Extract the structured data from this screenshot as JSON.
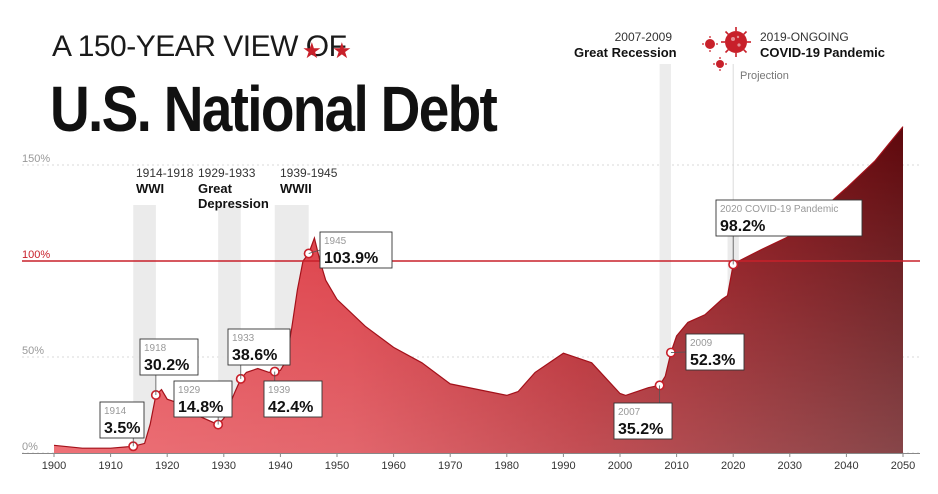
{
  "title": {
    "line1": "A 150-YEAR VIEW OF",
    "line2": "U.S. National Debt"
  },
  "events": [
    {
      "years": "1914-1918",
      "name": "WWI"
    },
    {
      "years": "1929-1933",
      "name": "Great Depression"
    },
    {
      "years": "1939-1945",
      "name": "WWII"
    },
    {
      "years": "2007-2009",
      "name": "Great Recession"
    },
    {
      "years": "2019-ONGOING",
      "name": "COVID-19 Pandemic"
    }
  ],
  "projection_label": "Projection",
  "colors": {
    "accent": "#c8202a",
    "dark": "#6e0a0e",
    "area_light": "#d9333c"
  },
  "icons": [
    "star-icon",
    "virus-icon"
  ],
  "chart_data": {
    "type": "area",
    "xlim": [
      1900,
      2050
    ],
    "ylim": [
      0,
      150
    ],
    "xticks": [
      "1900",
      "1910",
      "1920",
      "1930",
      "1940",
      "1950",
      "1960",
      "1970",
      "1980",
      "1990",
      "2000",
      "2010",
      "2020",
      "2030",
      "2040",
      "2050"
    ],
    "yticks": [
      "0%",
      "50%",
      "100%",
      "150%"
    ],
    "reference_line": {
      "y": 100,
      "label": "100%"
    },
    "x": [
      1900,
      1905,
      1910,
      1914,
      1916,
      1917,
      1918,
      1919,
      1920,
      1922,
      1925,
      1929,
      1930,
      1931,
      1932,
      1933,
      1934,
      1936,
      1938,
      1939,
      1940,
      1941,
      1942,
      1943,
      1944,
      1945,
      1946,
      1947,
      1948,
      1950,
      1955,
      1960,
      1965,
      1970,
      1975,
      1980,
      1982,
      1985,
      1990,
      1993,
      1995,
      2000,
      2001,
      2005,
      2007,
      2008,
      2009,
      2010,
      2012,
      2015,
      2018,
      2019,
      2020,
      2021,
      2025,
      2030,
      2035,
      2040,
      2045,
      2050
    ],
    "y": [
      4,
      2.5,
      2.5,
      3.5,
      5,
      15,
      30.2,
      33,
      28,
      26,
      20,
      14.8,
      18,
      25,
      32,
      38.6,
      42,
      44,
      42,
      42.4,
      43,
      48,
      65,
      85,
      100,
      103.9,
      112,
      100,
      90,
      80,
      66,
      55,
      47,
      36,
      33,
      30,
      32,
      42,
      52,
      49,
      47,
      31,
      30,
      34,
      35.2,
      40,
      52.3,
      61,
      68,
      72,
      80,
      82,
      98.2,
      100,
      106,
      113,
      125,
      138,
      152,
      170
    ],
    "labels": [
      {
        "year": "1914",
        "value": "3.5%"
      },
      {
        "year": "1918",
        "value": "30.2%"
      },
      {
        "year": "1929",
        "value": "14.8%"
      },
      {
        "year": "1933",
        "value": "38.6%"
      },
      {
        "year": "1939",
        "value": "42.4%"
      },
      {
        "year": "1945",
        "value": "103.9%"
      },
      {
        "year": "2007",
        "value": "35.2%"
      },
      {
        "year": "2009",
        "value": "52.3%"
      },
      {
        "year": "2020 COVID-19 Pandemic",
        "value": "98.2%"
      }
    ]
  }
}
